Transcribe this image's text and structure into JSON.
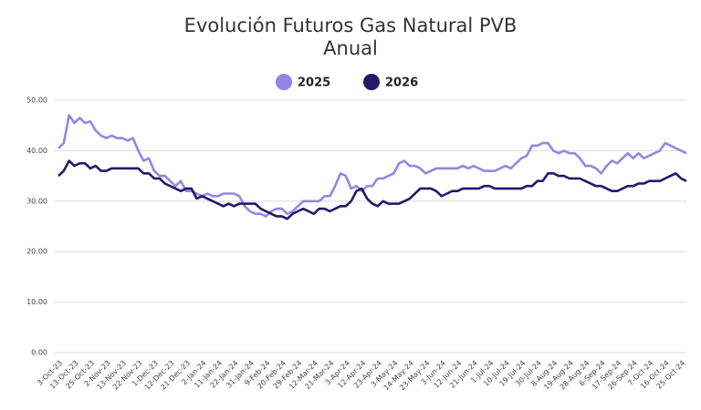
{
  "chart_data": {
    "type": "line",
    "title": "Evolución Futuros Gas Natural PVB Anual",
    "categories": [
      "3-Oct-23",
      null,
      null,
      "13-Oct-23",
      null,
      null,
      "25-Oct-23",
      null,
      null,
      "2-Nov-23",
      null,
      null,
      "13-Nov-23",
      null,
      null,
      "22-Nov-23",
      null,
      null,
      "1-Dec-23",
      null,
      null,
      "12-Dec-23",
      null,
      null,
      "21-Dec-23",
      null,
      null,
      "2-Jan-24",
      null,
      null,
      "11-Jan-24",
      null,
      null,
      "22-Jan-24",
      null,
      null,
      "31-Jan-24",
      null,
      null,
      "9-Feb-24",
      null,
      null,
      "20-Feb-24",
      null,
      null,
      "29-Feb-24",
      null,
      null,
      "12-Mar-24",
      null,
      null,
      "21-Mar-24",
      null,
      null,
      "3-Apr-24",
      null,
      null,
      "12-Apr-24",
      null,
      null,
      "23-Apr-24",
      null,
      null,
      "3-May-24",
      null,
      null,
      "14-May-24",
      null,
      null,
      "23-May-24",
      null,
      null,
      "3-Jun-24",
      null,
      null,
      "12-Jun-24",
      null,
      null,
      "21-Jun-24",
      null,
      null,
      "1-Jul-24",
      null,
      null,
      "10-Jul-24",
      null,
      null,
      "19-Jul-24",
      null,
      null,
      "30-Jul-24",
      null,
      null,
      "8-Aug-24",
      null,
      null,
      "19-Aug-24",
      null,
      null,
      "28-Aug-24",
      null,
      null,
      "6-Sep-24",
      null,
      null,
      "17-Sep-24",
      null,
      null,
      "26-Sep-24",
      null,
      null,
      "7-Oct-24",
      null,
      null,
      "16-Oct-24",
      null,
      null,
      "25-Oct-24",
      null
    ],
    "series": [
      {
        "name": "2025",
        "color": "#9088e6",
        "values": [
          40.5,
          41.5,
          47,
          45.5,
          46.5,
          45.5,
          45.8,
          44,
          43,
          42.5,
          43,
          42.5,
          42.5,
          42,
          42.5,
          40,
          38,
          38.5,
          36,
          35,
          35,
          34,
          33,
          34,
          32,
          32,
          31.5,
          31,
          31.5,
          31,
          31,
          31.5,
          31.5,
          31.5,
          31,
          29,
          28,
          27.5,
          27.5,
          27,
          28,
          28.5,
          28.5,
          27.5,
          28,
          29,
          30,
          30,
          30,
          30,
          31,
          31,
          33,
          35.5,
          35,
          32.5,
          33,
          32,
          33,
          33,
          34.5,
          34.5,
          35,
          35.5,
          37.5,
          38,
          37,
          37,
          36.5,
          35.5,
          36,
          36.5,
          36.5,
          36.5,
          36.5,
          36.5,
          37,
          36.5,
          37,
          36.5,
          36,
          36,
          36,
          36.5,
          37,
          36.5,
          37.5,
          38.5,
          39,
          41,
          41,
          41.5,
          41.5,
          40,
          39.5,
          40,
          39.5,
          39.5,
          38.5,
          37,
          37,
          36.5,
          35.5,
          37,
          38,
          37.5,
          38.5,
          39.5,
          38.5,
          39.5,
          38.5,
          39,
          39.5,
          40,
          41.5,
          41,
          40.5,
          40,
          39.5
        ]
      },
      {
        "name": "2026",
        "color": "#211a6a",
        "values": [
          35,
          36,
          38,
          37,
          37.5,
          37.5,
          36.5,
          37,
          36,
          36,
          36.5,
          36.5,
          36.5,
          36.5,
          36.5,
          36.5,
          35.5,
          35.5,
          34.5,
          34.5,
          33.5,
          33,
          32.5,
          32,
          32.5,
          32.5,
          30.5,
          31,
          30.5,
          30,
          29.5,
          29,
          29.5,
          29,
          29.5,
          29.5,
          29.5,
          29.5,
          28.5,
          28,
          27.5,
          27,
          27,
          26.5,
          27.5,
          28,
          28.5,
          28,
          27.5,
          28.5,
          28.5,
          28,
          28.5,
          29,
          29,
          30,
          32,
          32.5,
          30.5,
          29.5,
          29,
          30,
          29.5,
          29.5,
          29.5,
          30,
          30.5,
          31.5,
          32.5,
          32.5,
          32.5,
          32,
          31,
          31.5,
          32,
          32,
          32.5,
          32.5,
          32.5,
          32.5,
          33,
          33,
          32.5,
          32.5,
          32.5,
          32.5,
          32.5,
          32.5,
          33,
          33,
          34,
          34,
          35.5,
          35.5,
          35,
          35,
          34.5,
          34.5,
          34.5,
          34,
          33.5,
          33,
          33,
          32.5,
          32,
          32,
          32.5,
          33,
          33,
          33.5,
          33.5,
          34,
          34,
          34,
          34.5,
          35,
          35.5,
          34.5,
          34
        ]
      }
    ],
    "ylim": [
      0,
      50
    ],
    "yticks": [
      {
        "value": 0,
        "label": "0.00"
      },
      {
        "value": 10,
        "label": "10.00"
      },
      {
        "value": 20,
        "label": "20.00"
      },
      {
        "value": 30,
        "label": "30.00"
      },
      {
        "value": 40,
        "label": "40.00"
      },
      {
        "value": 50,
        "label": "50.00"
      }
    ],
    "grid": true
  }
}
